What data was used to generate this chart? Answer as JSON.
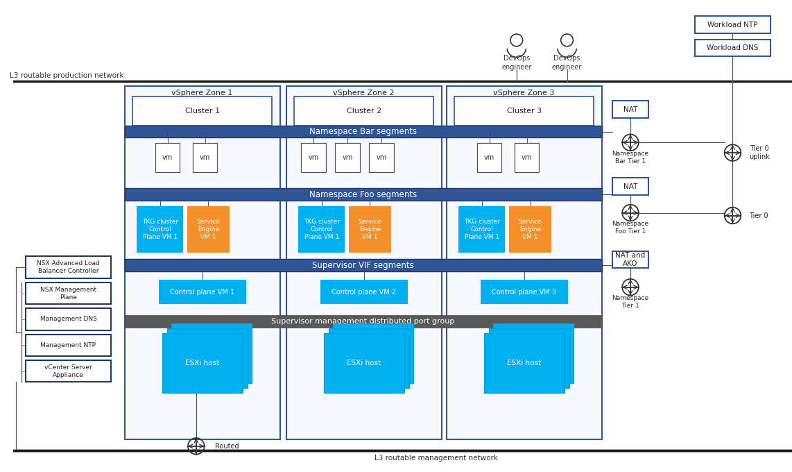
{
  "bg_color": "#ffffff",
  "dark_blue": "#1F3864",
  "mid_blue": "#2F5597",
  "light_blue_border": "#2F5597",
  "nat_border": "#2F5597",
  "cyan": "#00B0F0",
  "orange": "#F4902A",
  "gray_bar": "#595959",
  "text_white": "#ffffff",
  "text_dark": "#222222",
  "zone_border": "#2F5597",
  "prod_net_label": "L3 routable production network",
  "mgmt_net_label": "L3 routable management network",
  "zones": [
    "vSphere Zone 1",
    "vSphere Zone 2",
    "vSphere Zone 3"
  ],
  "clusters": [
    "Cluster 1",
    "Cluster 2",
    "Cluster 3"
  ],
  "bar_segments_label": "Namespace Bar segments",
  "foo_segments_label": "Namespace Foo segments",
  "vif_segments_label": "Supervisor VIF segments",
  "mgmt_bar_label": "Supervisor management distributed port group",
  "vm_label": "vm",
  "tkg_label": "TKG cluster\nControl\nPlane VM 1",
  "se_label": "Service\nEngine\nVM 1",
  "cp_labels": [
    "Control plane VM 1",
    "Control plane VM 2",
    "Control plane VM 3"
  ],
  "esxi_label": "ESXi host",
  "left_boxes": [
    "NSX Advanced Load\nBalancer Controller",
    "NSX Management\nPlane",
    "Management DNS",
    "Management NTP",
    "vCenter Server\nAppliance"
  ],
  "workload_boxes": [
    "Workload NTP",
    "Workload DNS"
  ],
  "devops_label": "DevOps\nengineer",
  "routed_label": "Routed",
  "nat_labels": [
    "NAT",
    "NAT",
    "NAT and\nAKO"
  ],
  "tier1_labels": [
    "Namespace\nBar Tier 1",
    "Namespace\nFoo Tier 1",
    "Namespace\nTier 1"
  ],
  "tier0_labels": [
    "Tier 0\nuplink",
    "Tier 0"
  ]
}
